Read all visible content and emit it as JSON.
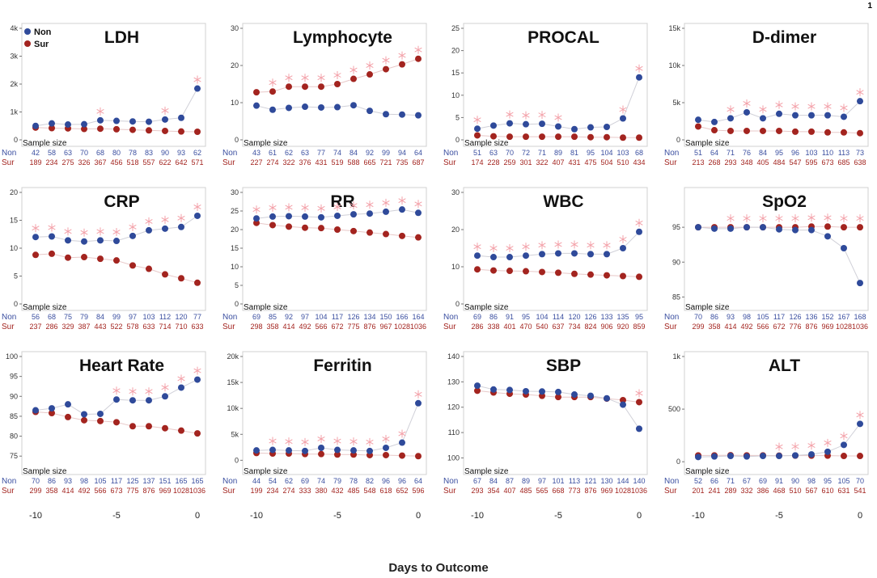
{
  "page_number": "1",
  "legend": {
    "non_label": "Non",
    "sur_label": "Sur"
  },
  "sample_size_label": "Sample size",
  "row_labels": {
    "non": "Non",
    "sur": "Sur"
  },
  "xlabel": "Days to Outcome",
  "colors": {
    "non": "#2f4a9a",
    "sur": "#a3241f",
    "star": "#f3a0a8",
    "non_text": "#3b4fa0",
    "sur_text": "#a3241f"
  },
  "chart_data": [
    {
      "type": "scatter",
      "title": "LDH",
      "ylim": [
        0,
        4000
      ],
      "yticks": [
        0,
        1000,
        2000,
        3000,
        4000
      ],
      "yticklabels": [
        "0",
        "1k",
        "2k",
        "3k",
        "4k"
      ],
      "x": [
        -10,
        -9,
        -8,
        -7,
        -6,
        -5,
        -4,
        -3,
        -2,
        -1,
        0
      ],
      "xticks": [
        -10,
        -5,
        0
      ],
      "series": [
        {
          "name": "Non",
          "values": [
            500,
            590,
            550,
            560,
            700,
            680,
            660,
            650,
            730,
            790,
            1840
          ]
        },
        {
          "name": "Sur",
          "values": [
            440,
            420,
            410,
            390,
            400,
            380,
            360,
            340,
            320,
            300,
            290
          ]
        }
      ],
      "significant_days": [
        -6,
        -2,
        0
      ],
      "sample_size": {
        "Non": [
          42,
          58,
          63,
          70,
          68,
          80,
          78,
          83,
          90,
          93,
          62
        ],
        "Sur": [
          189,
          234,
          275,
          326,
          367,
          456,
          518,
          557,
          622,
          642,
          571
        ]
      }
    },
    {
      "type": "scatter",
      "title": "Lymphocyte",
      "ylim": [
        0,
        30
      ],
      "yticks": [
        0,
        10,
        20,
        30
      ],
      "yticklabels": [
        "0",
        "10",
        "20",
        "30"
      ],
      "x": [
        -10,
        -9,
        -8,
        -7,
        -6,
        -5,
        -4,
        -3,
        -2,
        -1,
        0
      ],
      "xticks": [
        -10,
        -5,
        0
      ],
      "series": [
        {
          "name": "Non",
          "values": [
            9.2,
            8.1,
            8.6,
            8.9,
            8.7,
            8.8,
            9.3,
            7.8,
            6.9,
            6.8,
            6.6
          ]
        },
        {
          "name": "Sur",
          "values": [
            12.8,
            13.0,
            14.3,
            14.3,
            14.3,
            15.0,
            16.4,
            17.6,
            19.0,
            20.3,
            21.8
          ]
        }
      ],
      "significant_days": [
        -9,
        -8,
        -7,
        -6,
        -5,
        -4,
        -3,
        -2,
        -1,
        0
      ],
      "sample_size": {
        "Non": [
          43,
          61,
          62,
          63,
          77,
          74,
          84,
          92,
          99,
          94,
          64
        ],
        "Sur": [
          227,
          274,
          322,
          376,
          431,
          519,
          588,
          665,
          721,
          735,
          687
        ]
      }
    },
    {
      "type": "scatter",
      "title": "PROCAL",
      "ylim": [
        0,
        25
      ],
      "yticks": [
        0,
        5,
        10,
        15,
        20,
        25
      ],
      "yticklabels": [
        "0",
        "5",
        "10",
        "15",
        "20",
        "25"
      ],
      "x": [
        -10,
        -9,
        -8,
        -7,
        -6,
        -5,
        -4,
        -3,
        -2,
        -1,
        0
      ],
      "xticks": [
        -10,
        -5,
        0
      ],
      "series": [
        {
          "name": "Non",
          "values": [
            2.5,
            3.2,
            3.7,
            3.5,
            3.6,
            3.0,
            2.4,
            2.8,
            2.9,
            4.8,
            14.0
          ]
        },
        {
          "name": "Sur",
          "values": [
            1.0,
            0.8,
            0.7,
            0.7,
            0.7,
            0.7,
            0.7,
            0.6,
            0.6,
            0.5,
            0.5
          ]
        }
      ],
      "significant_days": [
        -10,
        -8,
        -7,
        -6,
        -5,
        -1,
        0
      ],
      "sample_size": {
        "Non": [
          51,
          63,
          70,
          72,
          71,
          89,
          81,
          95,
          104,
          103,
          68
        ],
        "Sur": [
          174,
          228,
          259,
          301,
          322,
          407,
          431,
          475,
          504,
          510,
          434
        ]
      }
    },
    {
      "type": "scatter",
      "title": "D-dimer",
      "ylim": [
        0,
        15000
      ],
      "yticks": [
        0,
        5000,
        10000,
        15000
      ],
      "yticklabels": [
        "0",
        "5k",
        "10k",
        "15k"
      ],
      "x": [
        -10,
        -9,
        -8,
        -7,
        -6,
        -5,
        -4,
        -3,
        -2,
        -1,
        0
      ],
      "xticks": [
        -10,
        -5,
        0
      ],
      "series": [
        {
          "name": "Non",
          "values": [
            2700,
            2400,
            2900,
            3700,
            2900,
            3500,
            3300,
            3300,
            3300,
            3100,
            5200
          ]
        },
        {
          "name": "Sur",
          "values": [
            1800,
            1300,
            1200,
            1200,
            1200,
            1200,
            1100,
            1100,
            1000,
            1000,
            900
          ]
        }
      ],
      "significant_days": [
        -8,
        -7,
        -6,
        -5,
        -4,
        -3,
        -2,
        -1,
        0
      ],
      "sample_size": {
        "Non": [
          51,
          64,
          71,
          76,
          84,
          95,
          96,
          103,
          110,
          113,
          73
        ],
        "Sur": [
          213,
          268,
          293,
          348,
          405,
          484,
          547,
          595,
          673,
          685,
          638
        ]
      }
    },
    {
      "type": "scatter",
      "title": "CRP",
      "ylim": [
        0,
        20
      ],
      "yticks": [
        0,
        5,
        10,
        15,
        20
      ],
      "yticklabels": [
        "0",
        "5",
        "10",
        "15",
        "20"
      ],
      "x": [
        -10,
        -9,
        -8,
        -7,
        -6,
        -5,
        -4,
        -3,
        -2,
        -1,
        0
      ],
      "xticks": [
        -10,
        -5,
        0
      ],
      "series": [
        {
          "name": "Non",
          "values": [
            12.0,
            12.1,
            11.4,
            11.2,
            11.4,
            11.3,
            12.2,
            13.2,
            13.5,
            13.8,
            15.8
          ]
        },
        {
          "name": "Sur",
          "values": [
            8.8,
            9.0,
            8.3,
            8.4,
            8.1,
            7.8,
            6.9,
            6.3,
            5.3,
            4.6,
            3.8
          ]
        }
      ],
      "significant_days": [
        -10,
        -9,
        -8,
        -7,
        -6,
        -5,
        -4,
        -3,
        -2,
        -1,
        0
      ],
      "sample_size": {
        "Non": [
          56,
          68,
          75,
          79,
          84,
          99,
          97,
          103,
          112,
          120,
          77
        ],
        "Sur": [
          237,
          286,
          329,
          387,
          443,
          522,
          578,
          633,
          714,
          710,
          633
        ]
      }
    },
    {
      "type": "scatter",
      "title": "RR",
      "ylim": [
        0,
        30
      ],
      "yticks": [
        0,
        5,
        10,
        15,
        20,
        25,
        30
      ],
      "yticklabels": [
        "0",
        "5",
        "10",
        "15",
        "20",
        "25",
        "30"
      ],
      "x": [
        -10,
        -9,
        -8,
        -7,
        -6,
        -5,
        -4,
        -3,
        -2,
        -1,
        0
      ],
      "xticks": [
        -10,
        -5,
        0
      ],
      "series": [
        {
          "name": "Non",
          "values": [
            23.0,
            23.5,
            23.6,
            23.5,
            23.3,
            23.7,
            24.1,
            24.3,
            24.8,
            25.4,
            24.5
          ]
        },
        {
          "name": "Sur",
          "values": [
            21.8,
            21.2,
            20.8,
            20.5,
            20.4,
            20.0,
            19.6,
            19.2,
            18.8,
            18.3,
            17.9
          ]
        }
      ],
      "significant_days": [
        -10,
        -9,
        -8,
        -7,
        -6,
        -5,
        -4,
        -3,
        -2,
        -1,
        0
      ],
      "sample_size": {
        "Non": [
          69,
          85,
          92,
          97,
          104,
          117,
          126,
          134,
          150,
          166,
          164
        ],
        "Sur": [
          298,
          358,
          414,
          492,
          566,
          672,
          775,
          876,
          967,
          1028,
          1036
        ]
      }
    },
    {
      "type": "scatter",
      "title": "WBC",
      "ylim": [
        0,
        30
      ],
      "yticks": [
        0,
        10,
        20,
        30
      ],
      "yticklabels": [
        "0",
        "10",
        "20",
        "30"
      ],
      "x": [
        -10,
        -9,
        -8,
        -7,
        -6,
        -5,
        -4,
        -3,
        -2,
        -1,
        0
      ],
      "xticks": [
        -10,
        -5,
        0
      ],
      "series": [
        {
          "name": "Non",
          "values": [
            13.0,
            12.6,
            12.6,
            13.0,
            13.4,
            13.6,
            13.6,
            13.4,
            13.4,
            15.0,
            19.4
          ]
        },
        {
          "name": "Sur",
          "values": [
            9.3,
            9.0,
            8.9,
            8.8,
            8.6,
            8.4,
            8.1,
            7.9,
            7.7,
            7.5,
            7.3
          ]
        }
      ],
      "significant_days": [
        -10,
        -9,
        -8,
        -7,
        -6,
        -5,
        -4,
        -3,
        -2,
        -1,
        0
      ],
      "sample_size": {
        "Non": [
          69,
          86,
          91,
          95,
          104,
          114,
          120,
          126,
          133,
          135,
          95
        ],
        "Sur": [
          286,
          338,
          401,
          470,
          540,
          637,
          734,
          824,
          906,
          920,
          859
        ]
      }
    },
    {
      "type": "scatter",
      "title": "SpO2",
      "ylim": [
        84,
        100
      ],
      "yticks": [
        85,
        90,
        95
      ],
      "yticklabels": [
        "85",
        "90",
        "95"
      ],
      "x": [
        -10,
        -9,
        -8,
        -7,
        -6,
        -5,
        -4,
        -3,
        -2,
        -1,
        0
      ],
      "xticks": [
        -10,
        -5,
        0
      ],
      "series": [
        {
          "name": "Non",
          "values": [
            95.0,
            94.8,
            94.8,
            95.0,
            95.0,
            94.7,
            94.6,
            94.6,
            93.7,
            92.0,
            87.0
          ]
        },
        {
          "name": "Sur",
          "values": [
            95.0,
            95.0,
            95.0,
            95.0,
            95.0,
            95.0,
            95.0,
            95.1,
            95.1,
            95.0,
            95.0
          ]
        }
      ],
      "significant_days": [
        -8,
        -7,
        -6,
        -5,
        -4,
        -3,
        -2,
        -1,
        0
      ],
      "sample_size": {
        "Non": [
          70,
          86,
          93,
          98,
          105,
          117,
          126,
          136,
          152,
          167,
          168
        ],
        "Sur": [
          299,
          358,
          414,
          492,
          566,
          672,
          776,
          876,
          969,
          1028,
          1036
        ]
      }
    },
    {
      "type": "scatter",
      "title": "Heart Rate",
      "ylim": [
        72,
        100
      ],
      "yticks": [
        75,
        80,
        85,
        90,
        95,
        100
      ],
      "yticklabels": [
        "75",
        "80",
        "85",
        "90",
        "95",
        "100"
      ],
      "x": [
        -10,
        -9,
        -8,
        -7,
        -6,
        -5,
        -4,
        -3,
        -2,
        -1,
        0
      ],
      "xticks": [
        -10,
        -5,
        0
      ],
      "series": [
        {
          "name": "Non",
          "values": [
            86.5,
            87.0,
            88.0,
            85.5,
            85.6,
            89.2,
            89.0,
            89.0,
            90.0,
            92.2,
            94.2
          ]
        },
        {
          "name": "Sur",
          "values": [
            86.1,
            85.8,
            84.8,
            84.0,
            83.8,
            83.5,
            82.5,
            82.5,
            82.0,
            81.4,
            80.7
          ]
        }
      ],
      "significant_days": [
        -5,
        -4,
        -3,
        -2,
        -1,
        0
      ],
      "sample_size": {
        "Non": [
          70,
          86,
          93,
          98,
          105,
          117,
          125,
          137,
          151,
          165,
          165
        ],
        "Sur": [
          299,
          358,
          414,
          492,
          566,
          673,
          775,
          876,
          969,
          1028,
          1036
        ]
      }
    },
    {
      "type": "scatter",
      "title": "Ferritin",
      "ylim": [
        -1500,
        20000
      ],
      "yticks": [
        0,
        5000,
        10000,
        15000,
        20000
      ],
      "yticklabels": [
        "0",
        "5k",
        "10k",
        "15k",
        "20k"
      ],
      "x": [
        -10,
        -9,
        -8,
        -7,
        -6,
        -5,
        -4,
        -3,
        -2,
        -1,
        0
      ],
      "xticks": [
        -10,
        -5,
        0
      ],
      "series": [
        {
          "name": "Non",
          "values": [
            1900,
            2000,
            1900,
            1800,
            2400,
            2000,
            1900,
            1800,
            2400,
            3400,
            11000
          ]
        },
        {
          "name": "Sur",
          "values": [
            1400,
            1300,
            1300,
            1200,
            1200,
            1100,
            1100,
            1000,
            1000,
            900,
            800
          ]
        }
      ],
      "significant_days": [
        -9,
        -8,
        -7,
        -6,
        -5,
        -4,
        -3,
        -2,
        -1,
        0
      ],
      "sample_size": {
        "Non": [
          44,
          54,
          62,
          69,
          74,
          79,
          78,
          82,
          96,
          96,
          64
        ],
        "Sur": [
          199,
          234,
          274,
          333,
          380,
          432,
          485,
          548,
          618,
          652,
          596
        ]
      }
    },
    {
      "type": "scatter",
      "title": "SBP",
      "ylim": [
        96,
        140
      ],
      "yticks": [
        100,
        110,
        120,
        130,
        140
      ],
      "yticklabels": [
        "100",
        "110",
        "120",
        "130",
        "140"
      ],
      "x": [
        -10,
        -9,
        -8,
        -7,
        -6,
        -5,
        -4,
        -3,
        -2,
        -1,
        0
      ],
      "xticks": [
        -10,
        -5,
        0
      ],
      "series": [
        {
          "name": "Non",
          "values": [
            128.5,
            127.0,
            126.8,
            126.3,
            126.2,
            126.0,
            125.0,
            124.5,
            123.5,
            121.0,
            111.5
          ]
        },
        {
          "name": "Sur",
          "values": [
            126.5,
            125.8,
            125.3,
            125.0,
            124.5,
            124.0,
            124.0,
            124.0,
            123.4,
            122.8,
            122.0
          ]
        }
      ],
      "significant_days": [
        0
      ],
      "sample_size": {
        "Non": [
          67,
          84,
          87,
          89,
          97,
          101,
          113,
          121,
          130,
          144,
          140
        ],
        "Sur": [
          293,
          354,
          407,
          485,
          565,
          668,
          773,
          876,
          969,
          1028,
          1036
        ]
      }
    },
    {
      "type": "scatter",
      "title": "ALT",
      "ylim": [
        -60,
        1000
      ],
      "yticks": [
        0,
        500,
        1000
      ],
      "yticklabels": [
        "0",
        "500",
        "1k"
      ],
      "x": [
        -10,
        -9,
        -8,
        -7,
        -6,
        -5,
        -4,
        -3,
        -2,
        -1,
        0
      ],
      "xticks": [
        -10,
        -5,
        0
      ],
      "series": [
        {
          "name": "Non",
          "values": [
            45,
            50,
            55,
            50,
            55,
            55,
            60,
            70,
            95,
            160,
            360
          ]
        },
        {
          "name": "Sur",
          "values": [
            60,
            60,
            62,
            60,
            60,
            58,
            58,
            58,
            58,
            55,
            55
          ]
        }
      ],
      "significant_days": [
        -5,
        -4,
        -3,
        -2,
        -1,
        0
      ],
      "sample_size": {
        "Non": [
          52,
          66,
          71,
          67,
          69,
          91,
          90,
          98,
          95,
          105,
          70
        ],
        "Sur": [
          201,
          241,
          289,
          332,
          386,
          468,
          510,
          567,
          610,
          631,
          541
        ]
      }
    }
  ]
}
